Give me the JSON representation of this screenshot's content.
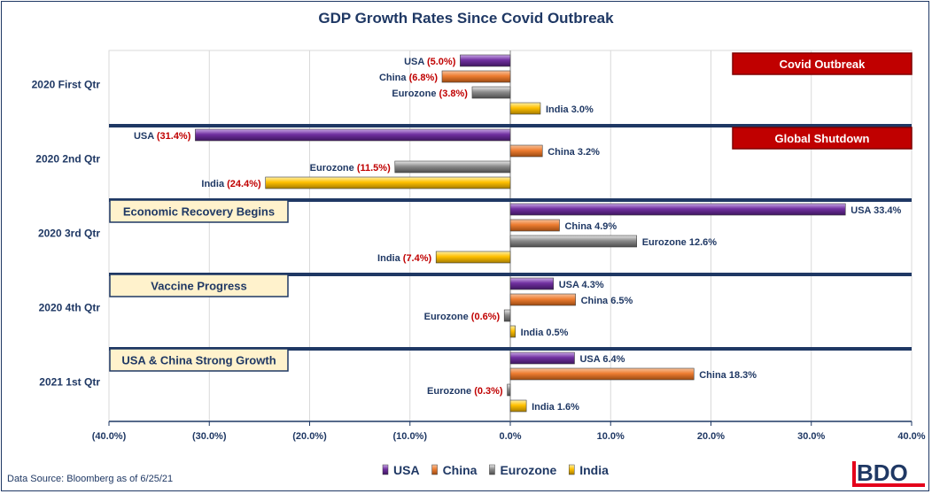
{
  "title": "GDP Growth Rates Since Covid Outbreak",
  "source": "Data Source: Bloomberg as of 6/25/21",
  "logo_text": "BDO",
  "colors": {
    "navy": "#1f3864",
    "negative_label": "#c00000",
    "callout_red": "#c00000",
    "callout_cream": "#fff2cc",
    "divider": "#1f3864"
  },
  "chart_data": {
    "type": "bar",
    "orientation": "horizontal",
    "title": "GDP Growth Rates Since Covid Outbreak",
    "xlim": [
      -40,
      40
    ],
    "ticks": [
      -40,
      -30,
      -20,
      -10,
      0,
      10,
      20,
      30,
      40
    ],
    "tick_labels": [
      "(40.0%)",
      "(30.0%)",
      "(20.0%)",
      "(10.0%)",
      "0.0%",
      "10.0%",
      "20.0%",
      "30.0%",
      "40.0%"
    ],
    "categories": [
      "2020 First Qtr",
      "2020 2nd Qtr",
      "2020 3rd Qtr",
      "2020 4th Qtr",
      "2021 1st Qtr"
    ],
    "series": [
      {
        "name": "USA",
        "color": "#7030a0",
        "values": [
          -5.0,
          -31.4,
          33.4,
          4.3,
          6.4
        ],
        "labels": [
          "(5.0%)",
          "(31.4%)",
          "33.4%",
          "4.3%",
          "6.4%"
        ]
      },
      {
        "name": "China",
        "color": "#ed7d31",
        "values": [
          -6.8,
          3.2,
          4.9,
          6.5,
          18.3
        ],
        "labels": [
          "(6.8%)",
          "3.2%",
          "4.9%",
          "6.5%",
          "18.3%"
        ]
      },
      {
        "name": "Eurozone",
        "color": "#808080",
        "values": [
          -3.8,
          -11.5,
          12.6,
          -0.6,
          -0.3
        ],
        "labels": [
          "(3.8%)",
          "(11.5%)",
          "12.6%",
          "(0.6%)",
          "(0.3%)"
        ]
      },
      {
        "name": "India",
        "color": "#ffc000",
        "values": [
          3.0,
          -24.4,
          -7.4,
          0.5,
          1.6
        ],
        "labels": [
          "3.0%",
          "(24.4%)",
          "(7.4%)",
          "0.5%",
          "1.6%"
        ]
      }
    ],
    "annotations": [
      {
        "text": "Covid Outbreak",
        "group": 0,
        "side": "right",
        "style": "red"
      },
      {
        "text": "Global Shutdown",
        "group": 1,
        "side": "right",
        "style": "red"
      },
      {
        "text": "Economic Recovery Begins",
        "group": 2,
        "side": "left",
        "style": "cream"
      },
      {
        "text": "Vaccine Progress",
        "group": 3,
        "side": "left",
        "style": "cream"
      },
      {
        "text": "USA & China Strong Growth",
        "group": 4,
        "side": "left",
        "style": "cream"
      }
    ],
    "legend_position": "bottom-center"
  }
}
